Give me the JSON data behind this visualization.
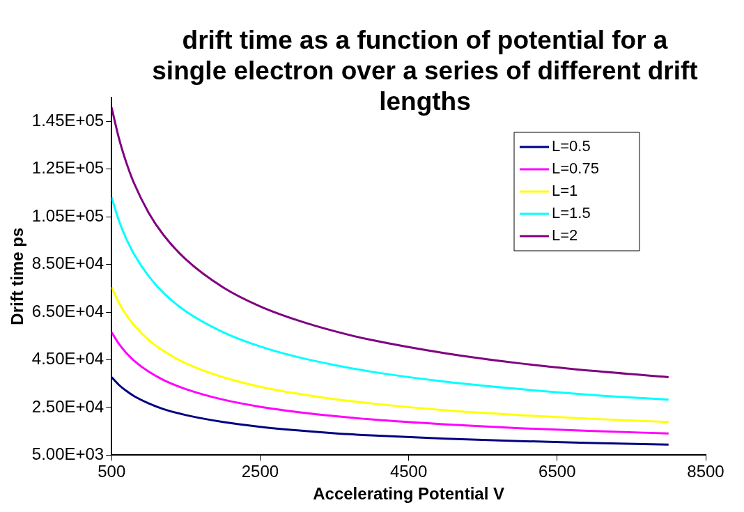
{
  "chart_data": {
    "type": "line",
    "title": "drift time as a function of potential for a single electron over a series of different drift lengths",
    "xlabel": "Accelerating Potential V",
    "ylabel": "Drift time ps",
    "x": [
      500,
      600,
      700,
      800,
      1000,
      1200,
      1500,
      2000,
      2500,
      3000,
      3500,
      4000,
      5000,
      6000,
      7000,
      8000
    ],
    "series": [
      {
        "name": "L=0.5",
        "color": "#000080",
        "values": [
          37700,
          34400,
          31900,
          29800,
          26700,
          24300,
          21800,
          18900,
          16900,
          15400,
          14200,
          13300,
          11900,
          10900,
          10100,
          9400
        ]
      },
      {
        "name": "L=0.75",
        "color": "#ff00ff",
        "values": [
          56500,
          51600,
          47800,
          44700,
          40000,
          36500,
          32700,
          28300,
          25300,
          23100,
          21400,
          20000,
          17900,
          16300,
          15100,
          14100
        ]
      },
      {
        "name": "L=1",
        "color": "#ffff00",
        "values": [
          75400,
          68800,
          63700,
          59600,
          53300,
          48700,
          43500,
          37700,
          33700,
          30800,
          28500,
          26700,
          23800,
          21800,
          20200,
          18900
        ]
      },
      {
        "name": "L=1.5",
        "color": "#00ffff",
        "values": [
          113100,
          103200,
          95600,
          89400,
          80000,
          73000,
          65300,
          56600,
          50600,
          46200,
          42800,
          40000,
          35800,
          32700,
          30200,
          28300
        ]
      },
      {
        "name": "L=2",
        "color": "#800080",
        "values": [
          150800,
          137700,
          127500,
          119200,
          106600,
          97300,
          87100,
          75400,
          67400,
          61600,
          57000,
          53300,
          47700,
          43500,
          40300,
          37700
        ]
      }
    ],
    "xlim": [
      500,
      8500
    ],
    "xticks": [
      500,
      2500,
      4500,
      6500,
      8500
    ],
    "ylim": [
      5000,
      155000
    ],
    "yticks": [
      {
        "value": 5000,
        "label": "5.00E+03"
      },
      {
        "value": 25000,
        "label": "2.50E+04"
      },
      {
        "value": 45000,
        "label": "4.50E+04"
      },
      {
        "value": 65000,
        "label": "6.50E+04"
      },
      {
        "value": 85000,
        "label": "8.50E+04"
      },
      {
        "value": 105000,
        "label": "1.05E+05"
      },
      {
        "value": 125000,
        "label": "1.25E+05"
      },
      {
        "value": 145000,
        "label": "1.45E+05"
      }
    ],
    "grid": false,
    "legend": "top right",
    "marker": "none",
    "line_style": "solid"
  }
}
